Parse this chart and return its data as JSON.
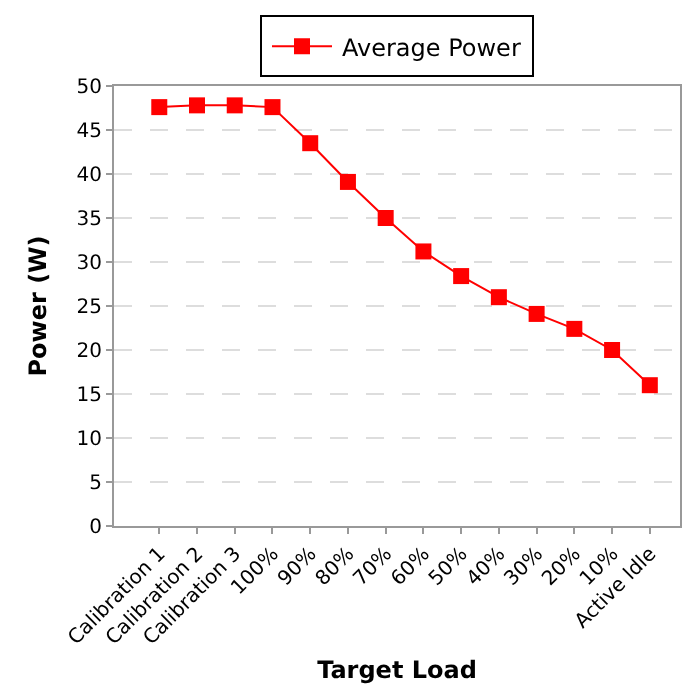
{
  "chart_data": {
    "type": "line",
    "xlabel": "Target Load",
    "ylabel": "Power (W)",
    "categories": [
      "Calibration 1",
      "Calibration 2",
      "Calibration 3",
      "100%",
      "90%",
      "80%",
      "70%",
      "60%",
      "50%",
      "40%",
      "30%",
      "20%",
      "10%",
      "Active Idle"
    ],
    "series": [
      {
        "name": "Average Power",
        "color": "#ff0000",
        "values": [
          47.6,
          47.8,
          47.8,
          47.6,
          43.5,
          39.1,
          35.0,
          31.2,
          28.4,
          26.0,
          24.1,
          22.4,
          20.0,
          16.0
        ]
      }
    ],
    "ylim": [
      0,
      50
    ],
    "yticks": [
      0,
      5,
      10,
      15,
      20,
      25,
      30,
      35,
      40,
      45,
      50
    ],
    "grid": "y",
    "legend": "top",
    "marker": "square",
    "line_style": "solid"
  }
}
